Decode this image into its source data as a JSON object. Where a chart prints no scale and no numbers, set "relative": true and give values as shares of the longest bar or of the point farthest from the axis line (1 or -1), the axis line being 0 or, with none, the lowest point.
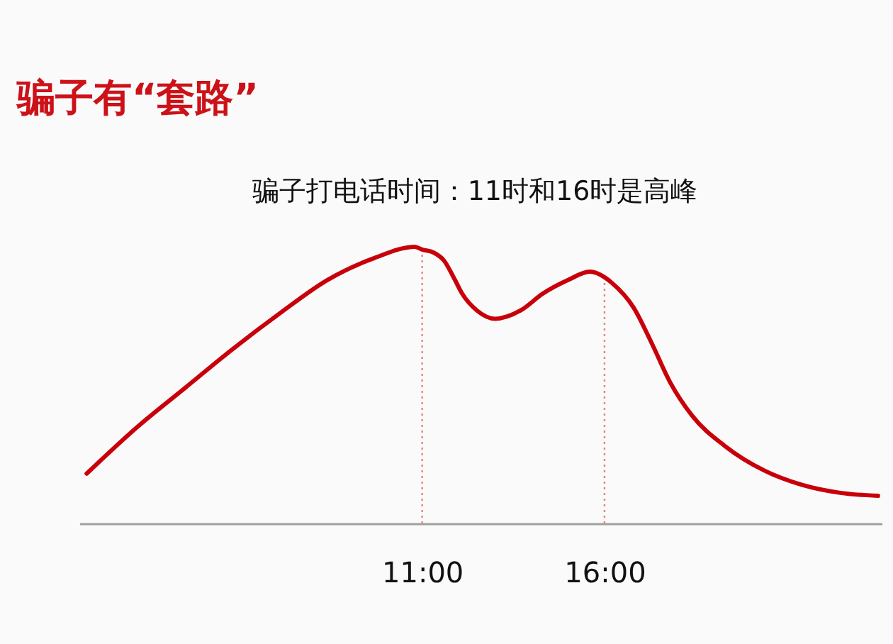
{
  "chart_data": {
    "type": "line",
    "title": "骗子有“套路”",
    "subtitle": "骗子打电话时间：11时和16时是高峰",
    "relative": true,
    "x": [
      1.8,
      3.2,
      4.5,
      5.8,
      7.1,
      8.4,
      9.7,
      10.8,
      11,
      11.3,
      11.6,
      11.9,
      12.1,
      12.5,
      13.0,
      13.7,
      14.3,
      15.0,
      15.6,
      16,
      16.2,
      16.8,
      17.3,
      17.8,
      18.4,
      19.3,
      20.4,
      21.4,
      22.5,
      23.5
    ],
    "series": [
      {
        "color": "#c8000a",
        "values": [
          0.18,
          0.35,
          0.49,
          0.63,
          0.76,
          0.88,
          0.96,
          1,
          0.99,
          0.98,
          0.95,
          0.88,
          0.83,
          0.77,
          0.74,
          0.77,
          0.83,
          0.88,
          0.91,
          0.89,
          0.87,
          0.78,
          0.65,
          0.51,
          0.39,
          0.28,
          0.19,
          0.14,
          0.11,
          0.1
        ]
      }
    ],
    "xlim": [
      1.6,
      23.6
    ],
    "xticks": [
      {
        "value": 11,
        "label": "11:00"
      },
      {
        "value": 16,
        "label": "16:00"
      }
    ],
    "ref_lines": [
      {
        "axis": "x",
        "value": 11,
        "color": "#f08080",
        "line_style": "dotted"
      },
      {
        "axis": "x",
        "value": 16,
        "color": "#f08080",
        "line_style": "dotted"
      }
    ]
  }
}
